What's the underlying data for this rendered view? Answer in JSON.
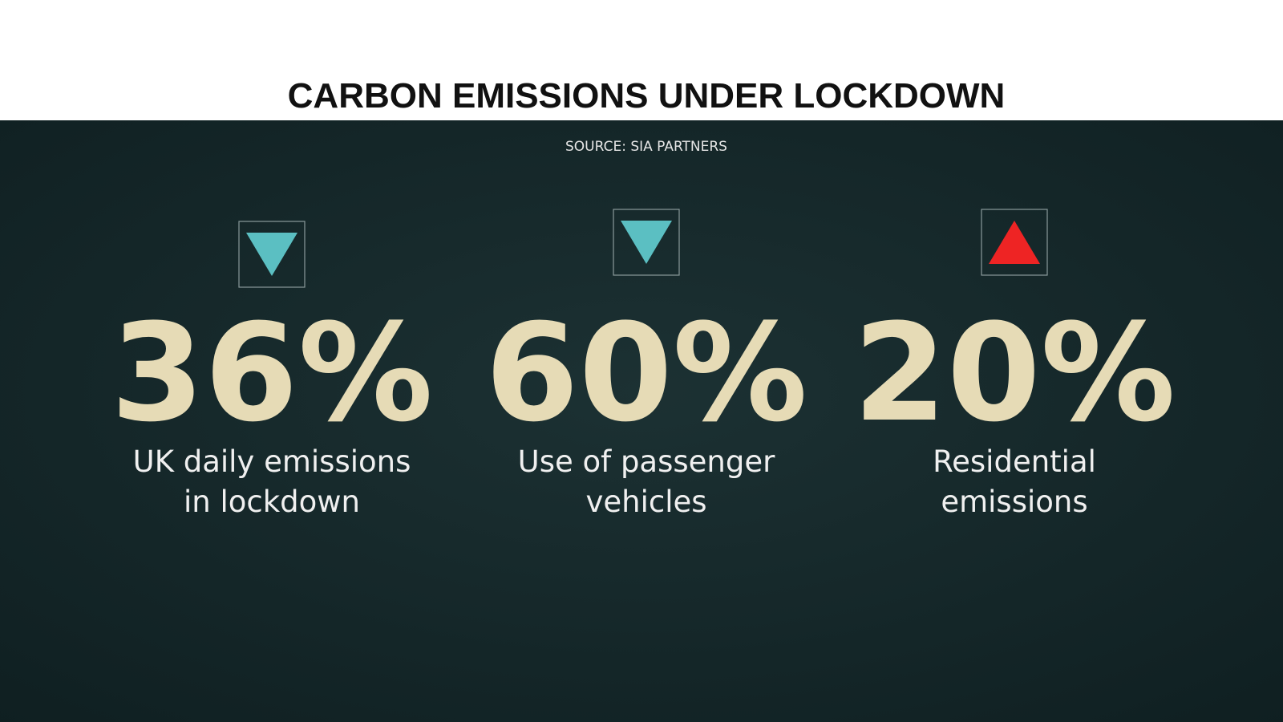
{
  "header": {
    "title": "CARBON EMISSIONS UNDER LOCKDOWN"
  },
  "source": "SOURCE: SIA PARTNERS",
  "stats": [
    {
      "value": "36%",
      "lines": [
        "UK daily emissions",
        "in lockdown"
      ],
      "direction": "down",
      "color": "#5bbfc2"
    },
    {
      "value": "60%",
      "lines": [
        "Use of passenger",
        "vehicles"
      ],
      "direction": "down",
      "color": "#5bbfc2"
    },
    {
      "value": "20%",
      "lines": [
        "Residential",
        "emissions"
      ],
      "direction": "up",
      "color": "#ee2424"
    }
  ]
}
